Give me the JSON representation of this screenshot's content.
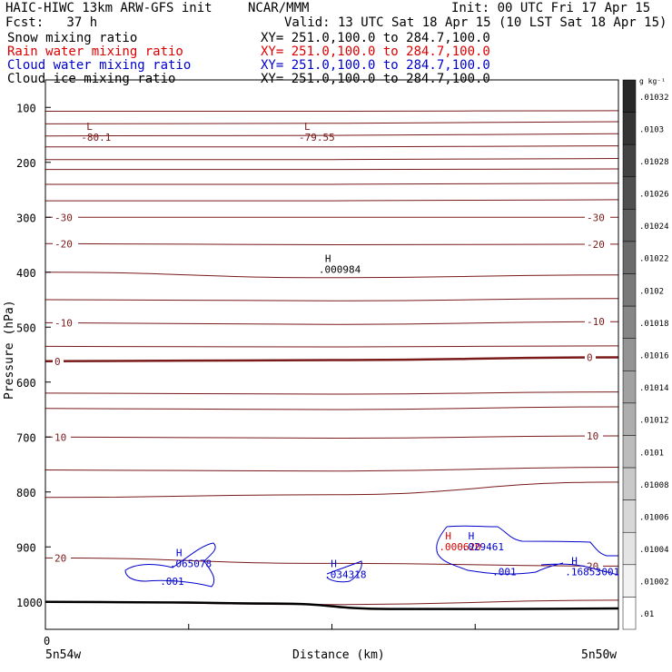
{
  "header": {
    "model": "HAIC-HIWC 13km ARW-GFS init",
    "org": "NCAR/MMM",
    "init": "Init: 00 UTC Fri 17 Apr 15",
    "fcst": "Fcst:   37 h",
    "valid": "Valid: 13 UTC Sat 18 Apr 15 (10 LST Sat 18 Apr 15)",
    "fields": [
      {
        "name": "Snow mixing ratio",
        "xy": "XY= 251.0,100.0 to 284.7,100.0",
        "color": "#000000"
      },
      {
        "name": "Rain water mixing ratio",
        "xy": "XY= 251.0,100.0 to 284.7,100.0",
        "color": "#dd0000"
      },
      {
        "name": "Cloud water mixing ratio",
        "xy": "XY= 251.0,100.0 to 284.7,100.0",
        "color": "#0000cc"
      },
      {
        "name": "Cloud ice mixing ratio",
        "xy": "XY= 251.0,100.0 to 284.7,100.0",
        "color": "#000000"
      }
    ]
  },
  "chart_data": {
    "type": "contour-cross-section",
    "ylabel": "Pressure (hPa)",
    "xlabel": "Distance (km)",
    "x_origin_label": "0",
    "x_left_label": "5n54w",
    "x_right_label": "5n50w",
    "yticks": [
      100,
      200,
      300,
      400,
      500,
      600,
      700,
      800,
      900,
      1000
    ],
    "ylim": [
      50,
      1050
    ],
    "xlim": [
      0,
      1
    ],
    "xticks_minor": [
      0.25,
      0.5,
      0.75
    ],
    "temperature_contours": {
      "color": "#7a1a1a",
      "levels": [
        {
          "p": [
            107,
            107,
            106
          ]
        },
        {
          "p": [
            130,
            129,
            126
          ]
        },
        {
          "p": [
            152,
            151,
            148
          ]
        },
        {
          "p": [
            172,
            172,
            170
          ]
        },
        {
          "p": [
            195,
            195,
            193
          ]
        },
        {
          "p": [
            213,
            213,
            212
          ]
        },
        {
          "p": [
            240,
            240,
            238
          ]
        },
        {
          "p": [
            270,
            270,
            268
          ]
        },
        {
          "p": [
            300,
            300,
            300
          ],
          "label": "-30"
        },
        {
          "p": [
            348,
            350,
            349
          ],
          "label": "-20"
        },
        {
          "p": [
            400,
            410,
            405
          ]
        },
        {
          "p": [
            450,
            452,
            448
          ]
        },
        {
          "p": [
            492,
            495,
            490
          ],
          "label": "-10"
        },
        {
          "p": [
            535,
            536,
            534
          ]
        },
        {
          "p": [
            562,
            560,
            555
          ],
          "label": "0",
          "bold": true
        },
        {
          "p": [
            620,
            622,
            618
          ]
        },
        {
          "p": [
            648,
            650,
            645
          ]
        },
        {
          "p": [
            700,
            702,
            698
          ],
          "label": "10"
        },
        {
          "p": [
            760,
            762,
            755
          ]
        },
        {
          "p": [
            810,
            805,
            782
          ]
        },
        {
          "p": [
            920,
            930,
            935
          ],
          "label": "20"
        },
        {
          "p": [
            1000,
            1005,
            997
          ]
        }
      ]
    },
    "terrain": {
      "color": "#000000",
      "p": [
        1000,
        1001,
        1003,
        1013,
        1013,
        1012
      ]
    },
    "min_markers": [
      {
        "mark": "L",
        "value": "-80.1",
        "x": 0.04,
        "p": 95
      },
      {
        "mark": "L",
        "value": "-79.55",
        "x": 0.42,
        "p": 95
      }
    ],
    "max_markers": [
      {
        "mark": "H",
        "value": ".000984",
        "x": 0.48,
        "p": 385,
        "color": "#000000"
      },
      {
        "mark": "H",
        "value": ".065078",
        "x": 0.22,
        "p": 920,
        "color": "#0000cc"
      },
      {
        "mark": "H",
        "value": ".034318",
        "x": 0.49,
        "p": 940,
        "color": "#0000cc"
      },
      {
        "mark": "H",
        "value": ".000620",
        "x": 0.69,
        "p": 890,
        "color": "#dd0000"
      },
      {
        "mark": "H",
        "value": ".029461",
        "x": 0.73,
        "p": 890,
        "color": "#0000cc"
      },
      {
        "mark": "H",
        "value": ".16853",
        "x": 0.91,
        "p": 935,
        "color": "#0000cc"
      }
    ],
    "cloud_water_labels": [
      {
        "value": ".001",
        "x": 0.2,
        "p": 962
      },
      {
        "value": ".001",
        "x": 0.78,
        "p": 945
      },
      {
        "value": ".001",
        "x": 0.96,
        "p": 945
      }
    ],
    "colorbar": {
      "unit": "g kg⁻¹",
      "labels": [
        ".01032",
        ".0103",
        ".01028",
        ".01026",
        ".01024",
        ".01022",
        ".0102",
        ".01018",
        ".01016",
        ".01014",
        ".01012",
        ".0101",
        ".01008",
        ".01006",
        ".01004",
        ".01002",
        ".01"
      ]
    }
  }
}
